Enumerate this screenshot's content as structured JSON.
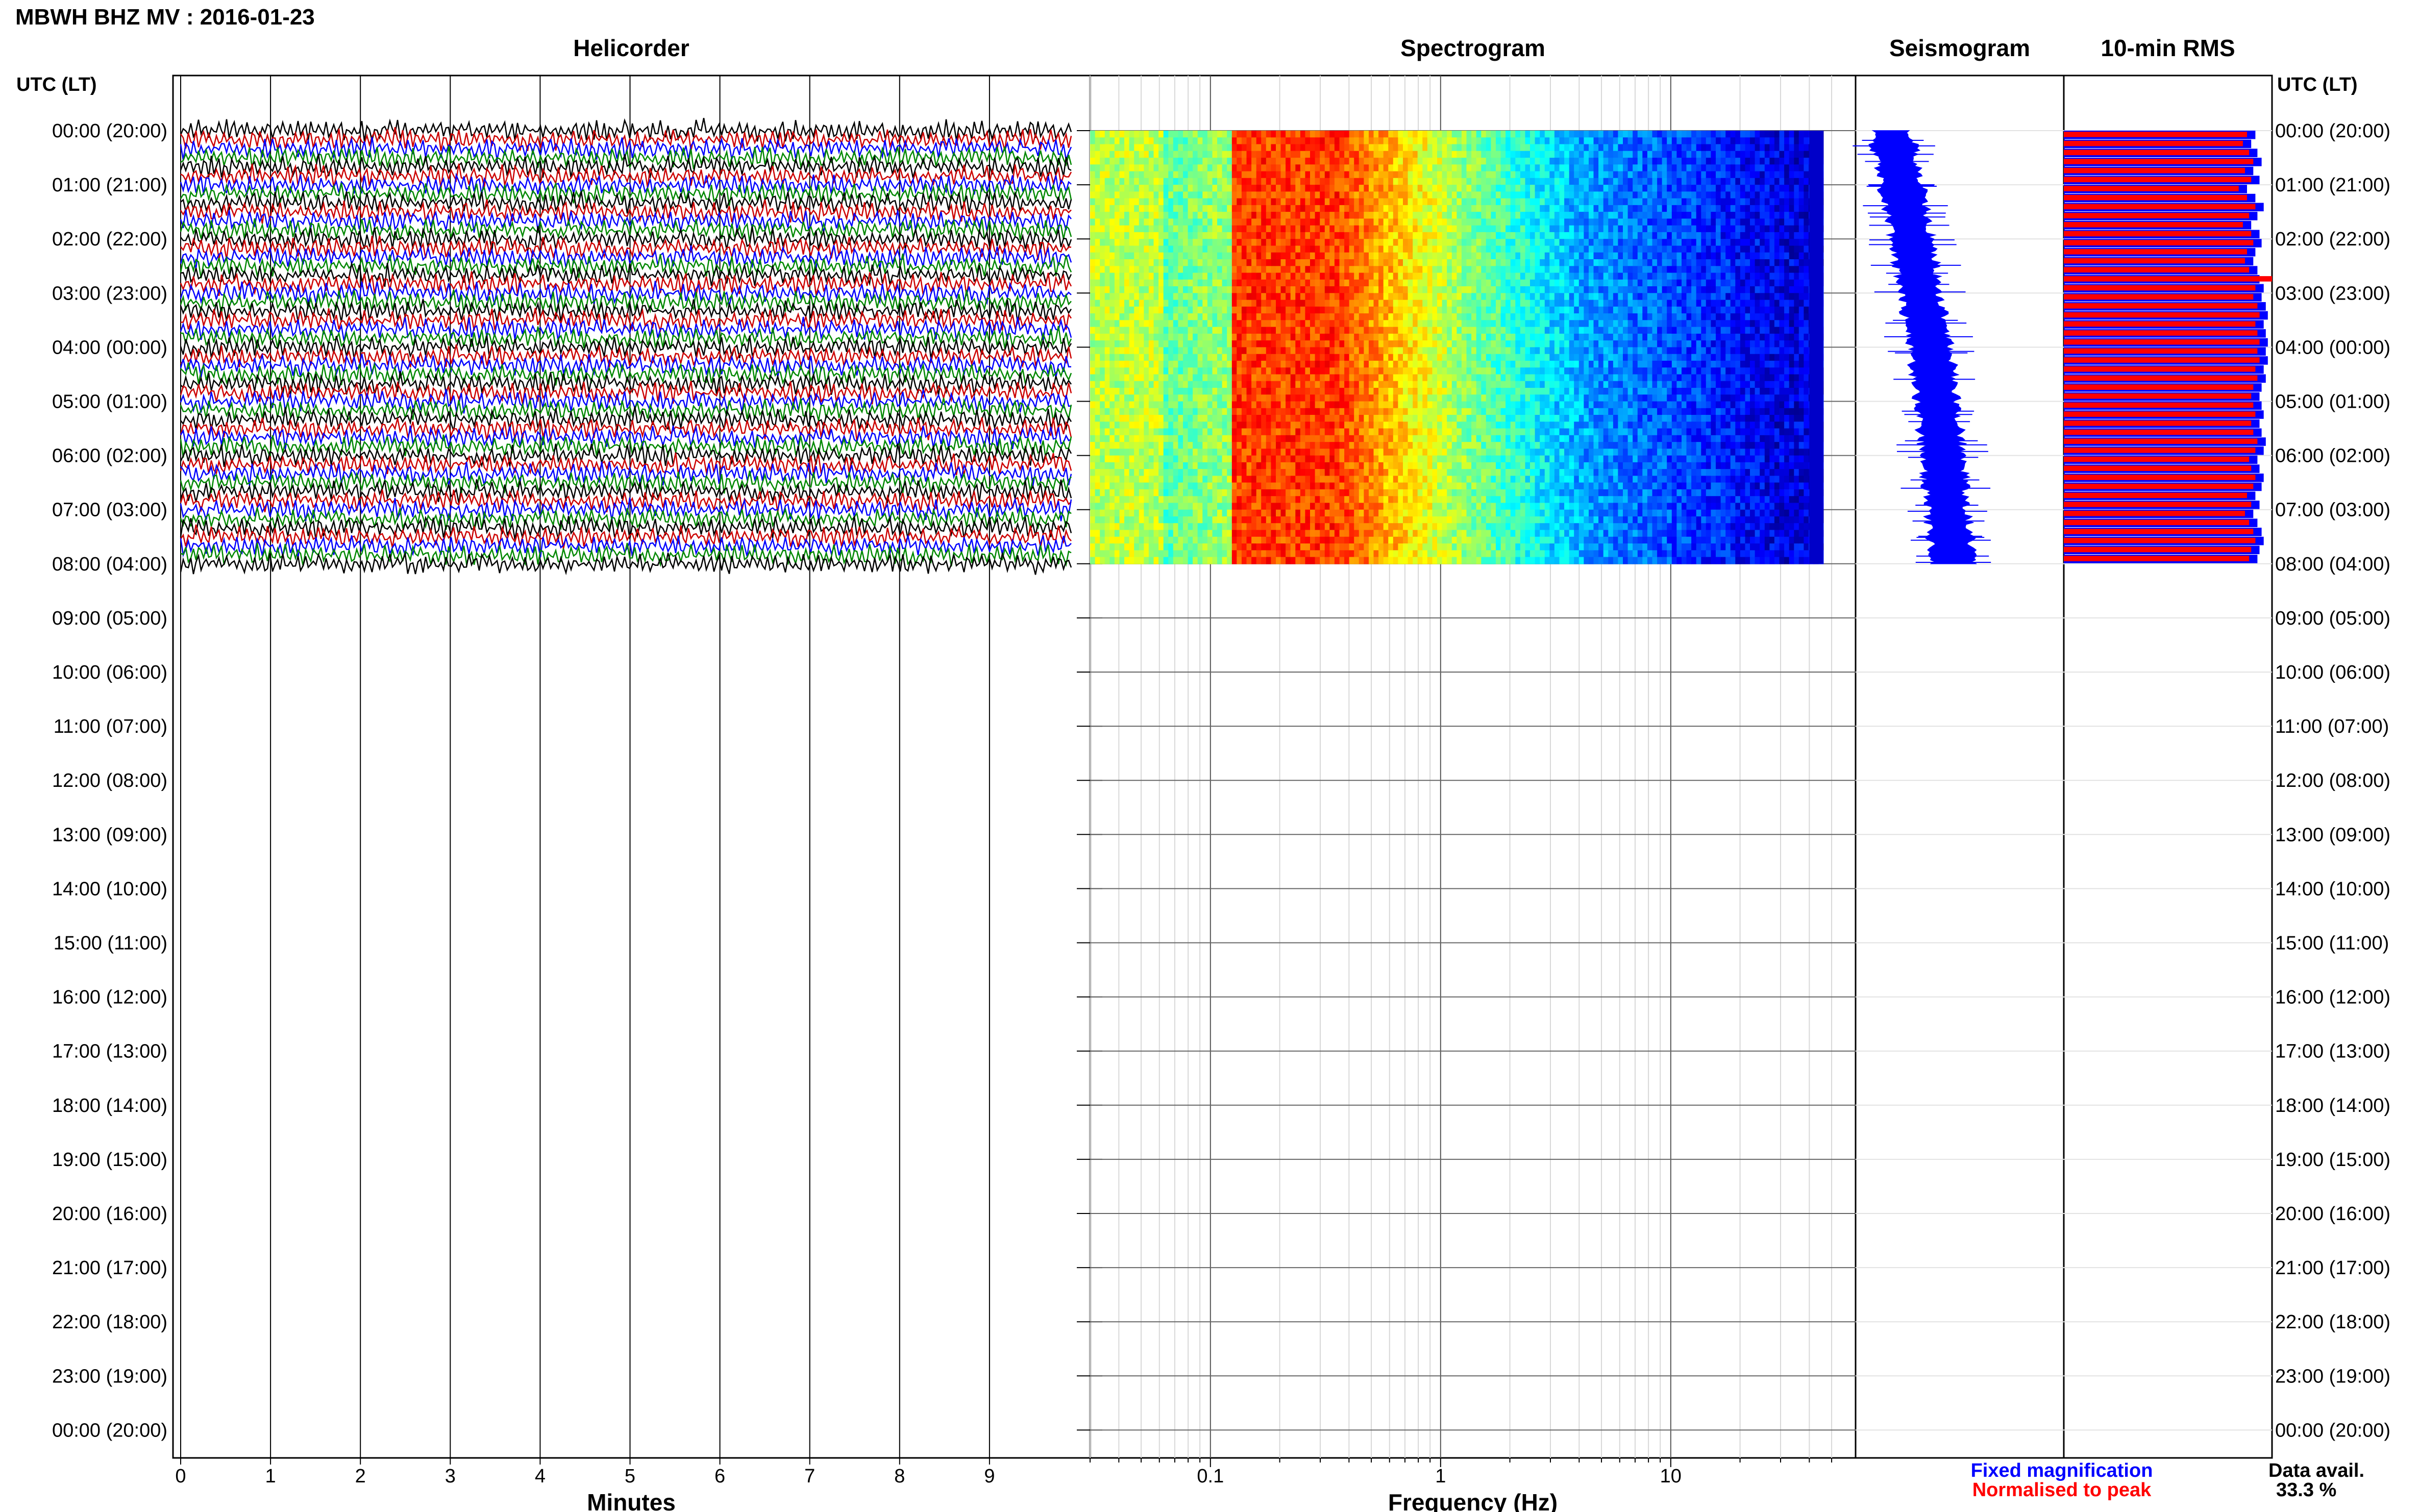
{
  "header": {
    "title": "MBWH BHZ MV : 2016-01-23"
  },
  "panels": {
    "helicorder": "Helicorder",
    "spectrogram": "Spectrogram",
    "seismogram": "Seismogram",
    "rms": "10-min RMS"
  },
  "axes": {
    "time_header_left": "UTC (LT)",
    "time_header_right": "UTC (LT)",
    "helicorder_xlabel": "Minutes",
    "spectrogram_xlabel": "Frequency (Hz)"
  },
  "legend": {
    "fixed": "Fixed magnification",
    "normalised": "Normalised to peak"
  },
  "availability": {
    "label": "Data avail.",
    "value": "33.3 %"
  },
  "colors": {
    "trace_cycle": [
      "#000000",
      "#cc0000",
      "#0000ff",
      "#008800"
    ],
    "seismogram": "#0000ff",
    "rms_fixed": "#0000ff",
    "rms_normalised": "#ff0000",
    "spectrogram_colormap": "jet"
  },
  "chart_data": [
    {
      "type": "line",
      "title": "Helicorder",
      "xlabel": "Minutes",
      "ylabel": "UTC (LT)",
      "xlim": [
        0,
        10
      ],
      "xticks": [
        0,
        1,
        2,
        3,
        4,
        5,
        6,
        7,
        8,
        9
      ],
      "time_labels": [
        "00:00 (20:00)",
        "01:00 (21:00)",
        "02:00 (22:00)",
        "03:00 (23:00)",
        "04:00 (00:00)",
        "05:00 (01:00)",
        "06:00 (02:00)",
        "07:00 (03:00)",
        "08:00 (04:00)",
        "09:00 (05:00)",
        "10:00 (06:00)",
        "11:00 (07:00)",
        "12:00 (08:00)",
        "13:00 (09:00)",
        "14:00 (10:00)",
        "15:00 (11:00)",
        "16:00 (12:00)",
        "17:00 (13:00)",
        "18:00 (14:00)",
        "19:00 (15:00)",
        "20:00 (16:00)",
        "21:00 (17:00)",
        "22:00 (18:00)",
        "23:00 (19:00)",
        "00:00 (20:00)"
      ],
      "lines_per_hour": 6,
      "data_hours": 8
    },
    {
      "type": "heatmap",
      "title": "Spectrogram",
      "xlabel": "Frequency (Hz)",
      "xscale": "log",
      "xlim": [
        0.03,
        50
      ],
      "xticks": [
        0.1,
        1,
        10
      ],
      "xtick_labels": [
        "0.1",
        "1",
        "10"
      ],
      "data_hours": 8
    },
    {
      "type": "line",
      "title": "Seismogram",
      "data_hours": 8,
      "amplitude_profile": [
        0.17,
        0.22,
        0.27,
        0.31,
        0.36,
        0.39,
        0.42,
        0.44,
        0.47
      ]
    },
    {
      "type": "bar",
      "title": "10-min RMS",
      "data_hours": 8,
      "bars_per_hour": 6,
      "fixed_values": [
        0.92,
        0.9,
        0.93,
        0.95,
        0.91,
        0.94,
        0.88,
        0.92,
        0.96,
        0.93,
        0.9,
        0.94,
        0.95,
        0.92,
        0.91,
        0.93,
        0.94,
        0.96,
        0.95,
        0.97,
        0.98,
        0.96,
        0.97,
        0.98,
        0.97,
        0.98,
        0.96,
        0.97,
        0.95,
        0.94,
        0.95,
        0.96,
        0.94,
        0.95,
        0.97,
        0.96,
        0.93,
        0.94,
        0.96,
        0.95,
        0.92,
        0.94,
        0.91,
        0.93,
        0.95,
        0.96,
        0.94,
        0.93
      ],
      "normalised_values": [
        0.88,
        0.86,
        0.89,
        0.91,
        0.87,
        0.9,
        0.84,
        0.88,
        0.92,
        0.89,
        0.86,
        0.9,
        0.91,
        0.88,
        0.87,
        0.89,
        1.0,
        0.92,
        0.91,
        0.93,
        0.94,
        0.92,
        0.93,
        0.94,
        0.93,
        0.94,
        0.92,
        0.93,
        0.91,
        0.9,
        0.91,
        0.92,
        0.9,
        0.91,
        0.93,
        0.92,
        0.89,
        0.9,
        0.92,
        0.91,
        0.88,
        0.9,
        0.87,
        0.89,
        0.91,
        0.92,
        0.9,
        0.89
      ]
    }
  ]
}
